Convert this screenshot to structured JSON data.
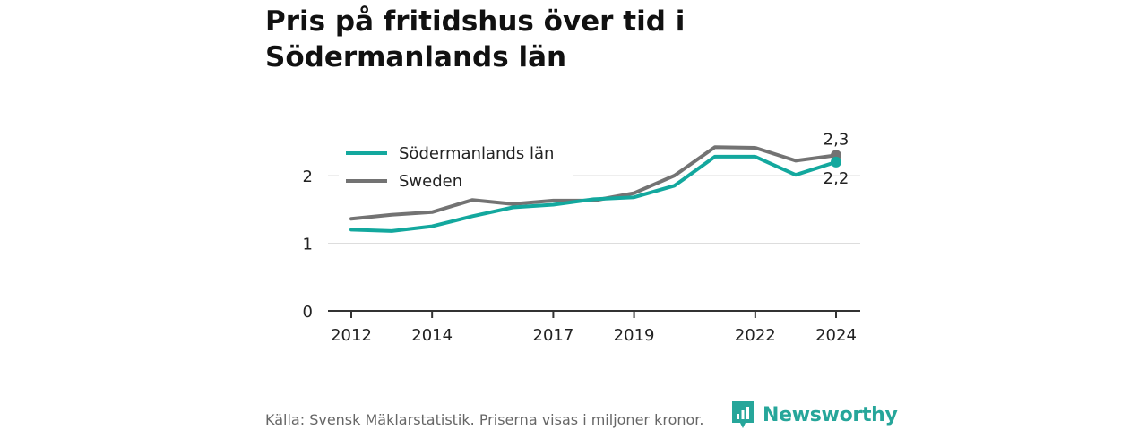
{
  "title": "Pris på fritidshus över tid i Södermanlands län",
  "source": "Källa: Svensk Mäklarstatistik. Priserna visas i miljoner kronor.",
  "brand": {
    "name": "Newsworthy",
    "icon": "newsworthy-logo-icon",
    "color": "#26a69a"
  },
  "chart_data": {
    "type": "line",
    "x": [
      2012,
      2013,
      2014,
      2015,
      2016,
      2017,
      2018,
      2019,
      2020,
      2021,
      2022,
      2023,
      2024
    ],
    "x_tick_labels": [
      "2012",
      "2014",
      "2017",
      "2019",
      "2022",
      "2024"
    ],
    "x_tick_values": [
      2012,
      2014,
      2017,
      2019,
      2022,
      2024
    ],
    "y_ticks": [
      0,
      1,
      2
    ],
    "y_tick_labels": [
      "0",
      "1",
      "2"
    ],
    "ylim": [
      0,
      2.6
    ],
    "grid": true,
    "legend_position": "top-left",
    "series": [
      {
        "name": "Södermanlands län",
        "color": "#13a89e",
        "values": [
          1.2,
          1.18,
          1.25,
          1.4,
          1.53,
          1.57,
          1.65,
          1.68,
          1.85,
          2.28,
          2.28,
          2.01,
          2.2
        ],
        "end_label": "2,2"
      },
      {
        "name": "Sweden",
        "color": "#737373",
        "values": [
          1.36,
          1.42,
          1.46,
          1.64,
          1.58,
          1.63,
          1.63,
          1.74,
          2.0,
          2.42,
          2.41,
          2.22,
          2.3
        ],
        "end_label": "2,3"
      }
    ]
  }
}
